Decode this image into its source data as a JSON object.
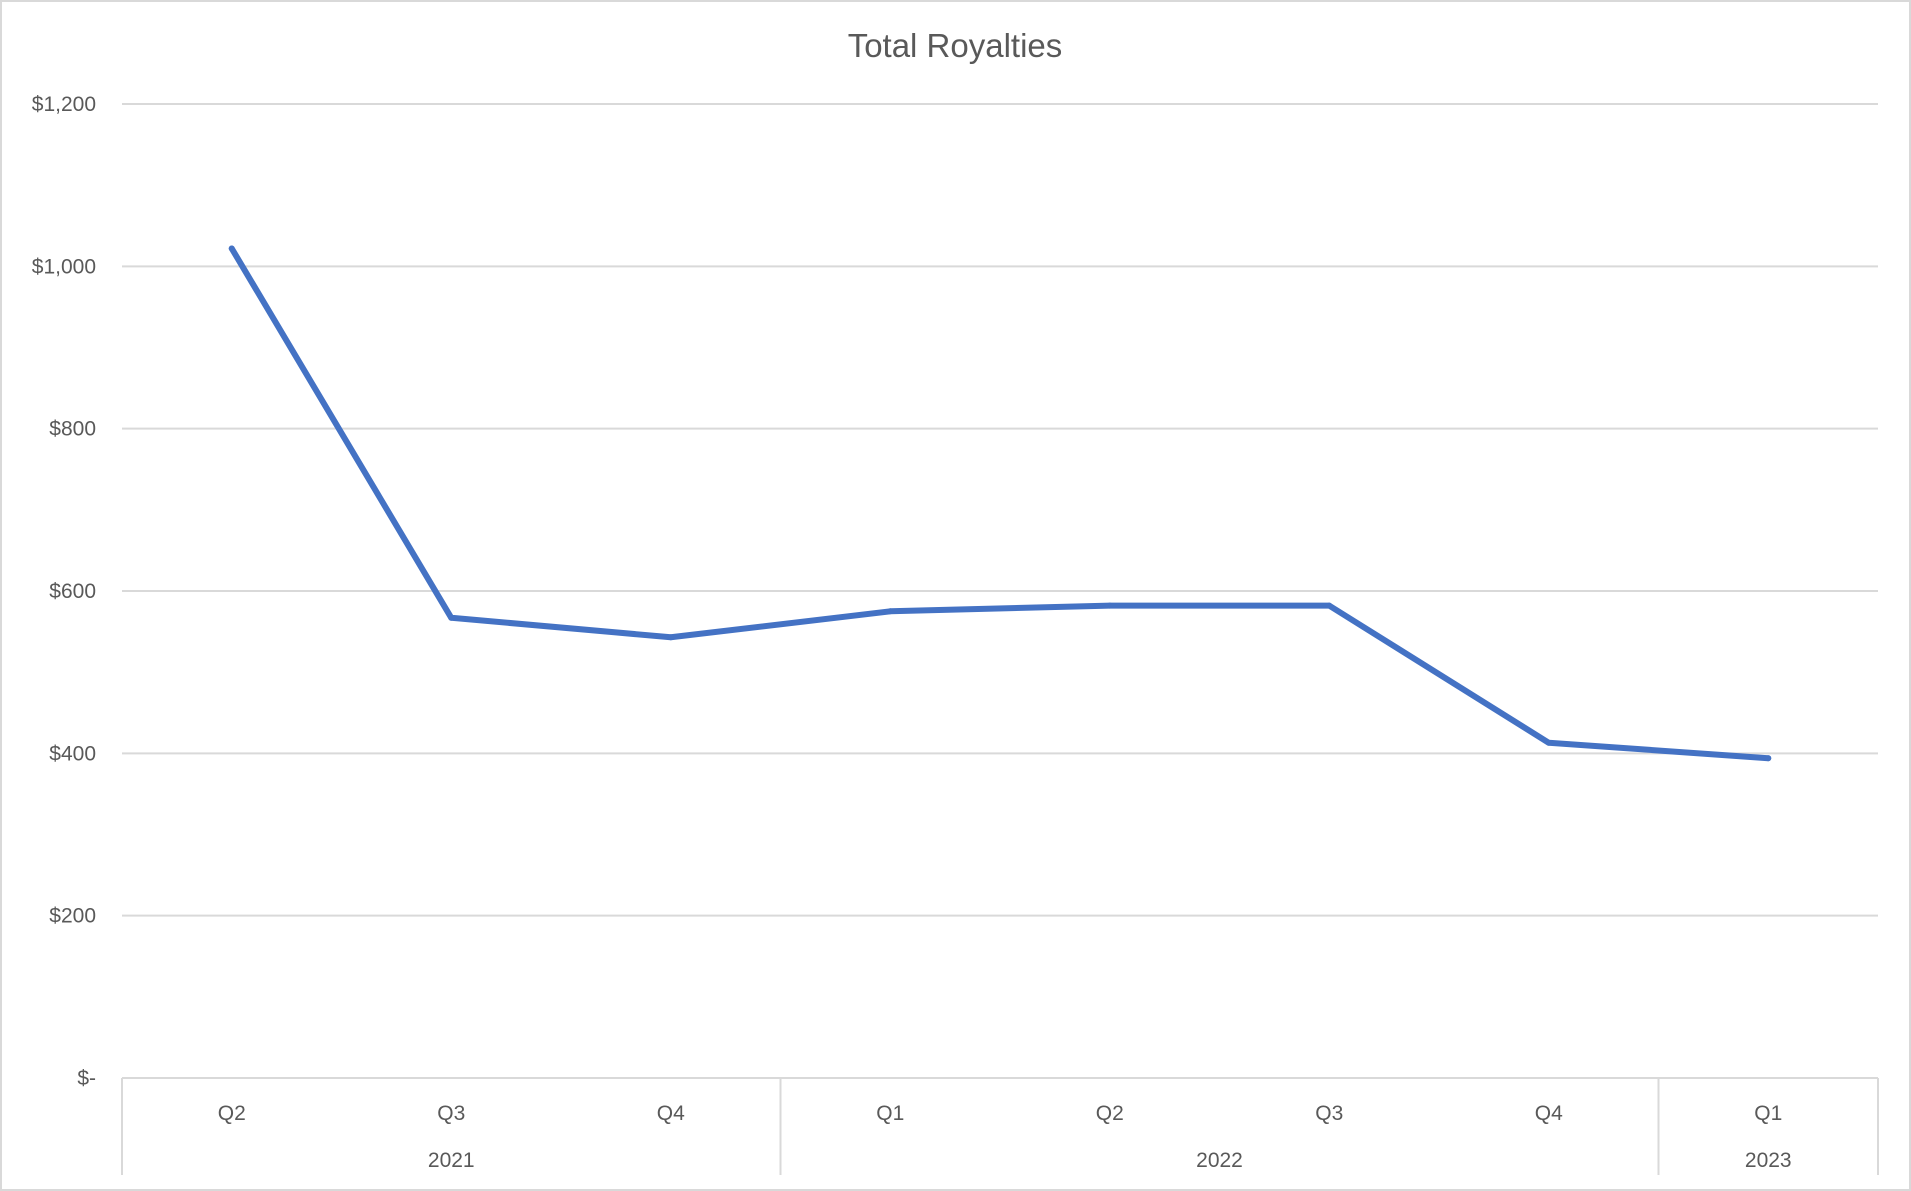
{
  "chart_data": {
    "type": "line",
    "title": "Total Royalties",
    "xlabel": "",
    "ylabel": "",
    "ylim": [
      0,
      1200
    ],
    "y_ticks": [
      0,
      200,
      400,
      600,
      800,
      1000,
      1200
    ],
    "y_tick_labels": [
      "$-",
      "$200",
      "$400",
      "$600",
      "$800",
      "$1,000",
      "$1,200"
    ],
    "categories": [
      "Q2",
      "Q3",
      "Q4",
      "Q1",
      "Q2",
      "Q3",
      "Q4",
      "Q1"
    ],
    "groups": [
      {
        "label": "2021",
        "count": 3
      },
      {
        "label": "2022",
        "count": 4
      },
      {
        "label": "2023",
        "count": 1
      }
    ],
    "series": [
      {
        "values": [
          1022,
          567,
          543,
          575,
          582,
          582,
          413,
          394
        ],
        "color": "#4472c4"
      }
    ],
    "grid": true,
    "legend": "none"
  }
}
